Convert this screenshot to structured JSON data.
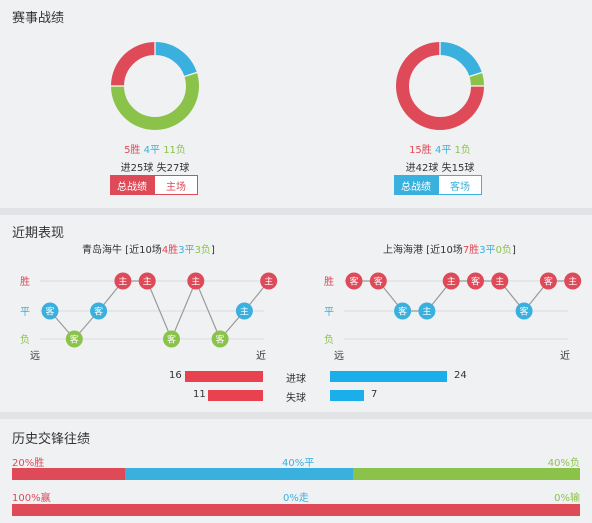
{
  "section1": {
    "title": "赛事战绩",
    "home": {
      "wins": "5胜",
      "draws": "4平",
      "losses": "11负",
      "goals_for": "进25球",
      "goals_against": "失27球",
      "tab_total": "总战绩",
      "tab_side": "主场",
      "record": {
        "win": 5,
        "draw": 4,
        "loss": 11
      }
    },
    "away": {
      "wins": "15胜",
      "draws": "4平",
      "losses": "1负",
      "goals_for": "进42球",
      "goals_against": "失15球",
      "tab_total": "总战绩",
      "tab_side": "客场",
      "record": {
        "win": 15,
        "draw": 4,
        "loss": 1
      }
    }
  },
  "section2": {
    "title": "近期表现",
    "home": {
      "team": "青岛海牛",
      "prefix": " [近10场",
      "w": "4胜",
      "d": "3平",
      "l": "3负",
      "suffix": "]",
      "results": [
        "D",
        "L",
        "D",
        "W",
        "W",
        "L",
        "W",
        "L",
        "D",
        "W"
      ],
      "venues": [
        "客",
        "客",
        "客",
        "主",
        "主",
        "客",
        "主",
        "客",
        "主",
        "主"
      ]
    },
    "away": {
      "team": "上海海港",
      "prefix": " [近10场",
      "w": "7胜",
      "d": "3平",
      "l": "0负",
      "suffix": "]",
      "results": [
        "W",
        "W",
        "D",
        "D",
        "W",
        "W",
        "W",
        "D",
        "W",
        "W"
      ],
      "venues": [
        "客",
        "客",
        "客",
        "主",
        "主",
        "客",
        "主",
        "客",
        "客",
        "主"
      ]
    },
    "y_labels": {
      "win": "胜",
      "draw": "平",
      "loss": "负"
    },
    "x_labels": {
      "far": "远",
      "near": "近"
    },
    "goals_for": {
      "label": "进球",
      "home": 16,
      "away": 24
    },
    "goals_against": {
      "label": "失球",
      "home": 11,
      "away": 7
    }
  },
  "section3": {
    "title": "历史交锋往绩",
    "row1": {
      "left": "20%胜",
      "mid": "40%平",
      "right": "40%负",
      "win": 20,
      "draw": 40,
      "loss": 40
    },
    "row2": {
      "left": "100%赢",
      "mid": "0%走",
      "right": "0%输",
      "win": 100,
      "draw": 0,
      "loss": 0
    }
  },
  "colors": {
    "red": "#de4a58",
    "blue": "#3ab0de",
    "green": "#8bc34a",
    "bar_red": "#e8414f",
    "bar_blue": "#1aaeea"
  }
}
